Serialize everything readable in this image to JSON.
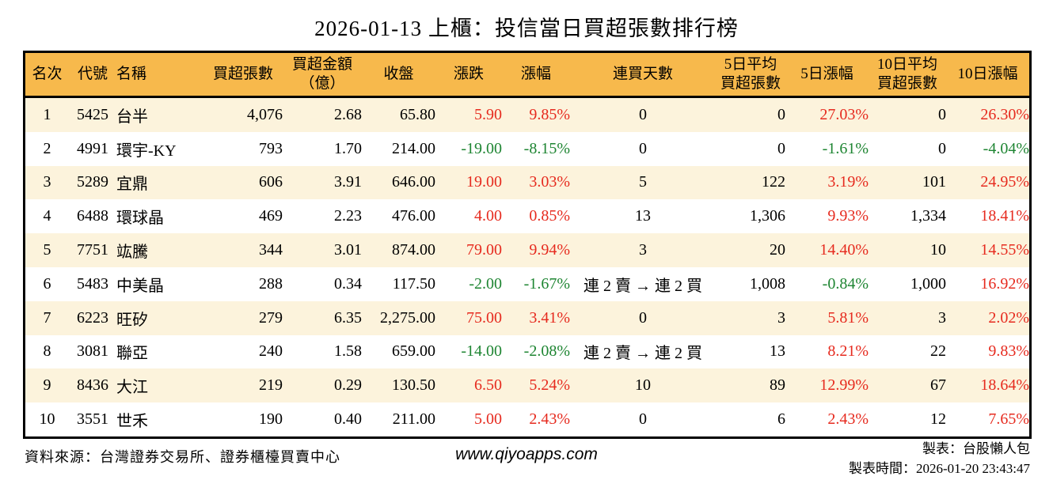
{
  "title": "2026-01-13 上櫃：投信當日買超張數排行榜",
  "colors": {
    "header_bg": "#F7B94C",
    "row_alt_bg": "#FCF3DC",
    "up_red": "#E62A1E",
    "down_green": "#1E8532",
    "border": "#000000"
  },
  "table": {
    "headers": {
      "rank": "名次",
      "code": "代號",
      "name": "名稱",
      "net_buy": "買超張數",
      "amount": "買超金額\n（億）",
      "close": "收盤",
      "change": "漲跌",
      "change_pct": "漲幅",
      "streak": "連買天數",
      "avg5": "5日平均\n買超張數",
      "pct5": "5日漲幅",
      "avg10": "10日平均\n買超張數",
      "pct10": "10日漲幅"
    },
    "rows": [
      {
        "rank": "1",
        "code": "5425",
        "name": "台半",
        "net_buy": "4,076",
        "amount": "2.68",
        "close": "65.80",
        "change": "5.90",
        "change_pct": "9.85%",
        "streak": "0",
        "avg5": "0",
        "pct5": "27.03%",
        "avg10": "0",
        "pct10": "26.30%"
      },
      {
        "rank": "2",
        "code": "4991",
        "name": "環宇-KY",
        "net_buy": "793",
        "amount": "1.70",
        "close": "214.00",
        "change": "-19.00",
        "change_pct": "-8.15%",
        "streak": "0",
        "avg5": "0",
        "pct5": "-1.61%",
        "avg10": "0",
        "pct10": "-4.04%"
      },
      {
        "rank": "3",
        "code": "5289",
        "name": "宜鼎",
        "net_buy": "606",
        "amount": "3.91",
        "close": "646.00",
        "change": "19.00",
        "change_pct": "3.03%",
        "streak": "5",
        "avg5": "122",
        "pct5": "3.19%",
        "avg10": "101",
        "pct10": "24.95%"
      },
      {
        "rank": "4",
        "code": "6488",
        "name": "環球晶",
        "net_buy": "469",
        "amount": "2.23",
        "close": "476.00",
        "change": "4.00",
        "change_pct": "0.85%",
        "streak": "13",
        "avg5": "1,306",
        "pct5": "9.93%",
        "avg10": "1,334",
        "pct10": "18.41%"
      },
      {
        "rank": "5",
        "code": "7751",
        "name": "竑騰",
        "net_buy": "344",
        "amount": "3.01",
        "close": "874.00",
        "change": "79.00",
        "change_pct": "9.94%",
        "streak": "3",
        "avg5": "20",
        "pct5": "14.40%",
        "avg10": "10",
        "pct10": "14.55%"
      },
      {
        "rank": "6",
        "code": "5483",
        "name": "中美晶",
        "net_buy": "288",
        "amount": "0.34",
        "close": "117.50",
        "change": "-2.00",
        "change_pct": "-1.67%",
        "streak": "連 2 賣 → 連 2 買",
        "avg5": "1,008",
        "pct5": "-0.84%",
        "avg10": "1,000",
        "pct10": "16.92%"
      },
      {
        "rank": "7",
        "code": "6223",
        "name": "旺矽",
        "net_buy": "279",
        "amount": "6.35",
        "close": "2,275.00",
        "change": "75.00",
        "change_pct": "3.41%",
        "streak": "0",
        "avg5": "3",
        "pct5": "5.81%",
        "avg10": "3",
        "pct10": "2.02%"
      },
      {
        "rank": "8",
        "code": "3081",
        "name": "聯亞",
        "net_buy": "240",
        "amount": "1.58",
        "close": "659.00",
        "change": "-14.00",
        "change_pct": "-2.08%",
        "streak": "連 2 賣 → 連 2 買",
        "avg5": "13",
        "pct5": "8.21%",
        "avg10": "22",
        "pct10": "9.83%"
      },
      {
        "rank": "9",
        "code": "8436",
        "name": "大江",
        "net_buy": "219",
        "amount": "0.29",
        "close": "130.50",
        "change": "6.50",
        "change_pct": "5.24%",
        "streak": "10",
        "avg5": "89",
        "pct5": "12.99%",
        "avg10": "67",
        "pct10": "18.64%"
      },
      {
        "rank": "10",
        "code": "3551",
        "name": "世禾",
        "net_buy": "190",
        "amount": "0.40",
        "close": "211.00",
        "change": "5.00",
        "change_pct": "2.43%",
        "streak": "0",
        "avg5": "6",
        "pct5": "2.43%",
        "avg10": "12",
        "pct10": "7.65%"
      }
    ]
  },
  "footer": {
    "source": "資料來源：台灣證券交易所、證券櫃檯買賣中心",
    "website": "www.qiyoapps.com",
    "made_by": "製表：台股懶人包",
    "made_time": "製表時間：2026-01-20 23:43:47"
  }
}
